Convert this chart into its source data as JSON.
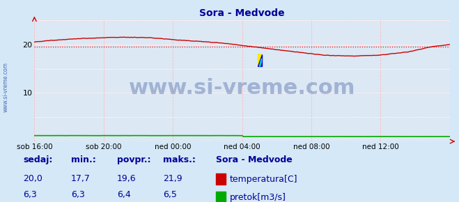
{
  "title": "Sora - Medvode",
  "title_color": "#000099",
  "bg_color": "#d4e8f7",
  "plot_bg_color": "#dce8f4",
  "xlim": [
    0,
    288
  ],
  "ylim": [
    0,
    25
  ],
  "yticks": [
    10,
    20
  ],
  "xlabel_ticks": [
    0,
    48,
    96,
    144,
    192,
    240,
    288
  ],
  "xlabel_labels": [
    "sob 16:00",
    "sob 20:00",
    "ned 00:00",
    "ned 04:00",
    "ned 08:00",
    "ned 12:00",
    ""
  ],
  "avg_line_y": 19.6,
  "avg_line_color": "#ff0000",
  "temp_color": "#cc0000",
  "flow_color": "#00aa00",
  "watermark": "www.si-vreme.com",
  "watermark_color": "#1a3a8a",
  "watermark_alpha": 0.3,
  "watermark_fontsize": 22,
  "sidebar_text": "www.si-vreme.com",
  "sidebar_color": "#3355aa",
  "legend_title": "Sora - Medvode",
  "legend_items": [
    "temperatura[C]",
    "pretok[m3/s]"
  ],
  "legend_colors": [
    "#cc0000",
    "#00aa00"
  ],
  "stats_labels": [
    "sedaj:",
    "min.:",
    "povpr.:",
    "maks.:"
  ],
  "stats_temp": [
    "20,0",
    "17,7",
    "19,6",
    "21,9"
  ],
  "stats_flow": [
    "6,3",
    "6,3",
    "6,4",
    "6,5"
  ],
  "stats_color": "#000099",
  "stats_fontsize": 9,
  "temp_keypoints_x": [
    0,
    10,
    30,
    60,
    80,
    96,
    130,
    144,
    180,
    200,
    220,
    240,
    260,
    275,
    288
  ],
  "temp_keypoints_y": [
    20.5,
    20.8,
    21.2,
    21.5,
    21.4,
    21.0,
    20.3,
    19.8,
    18.5,
    17.8,
    17.6,
    17.8,
    18.5,
    19.5,
    20.0
  ],
  "flow_value_first": 1.2,
  "flow_value_second": 1.0
}
